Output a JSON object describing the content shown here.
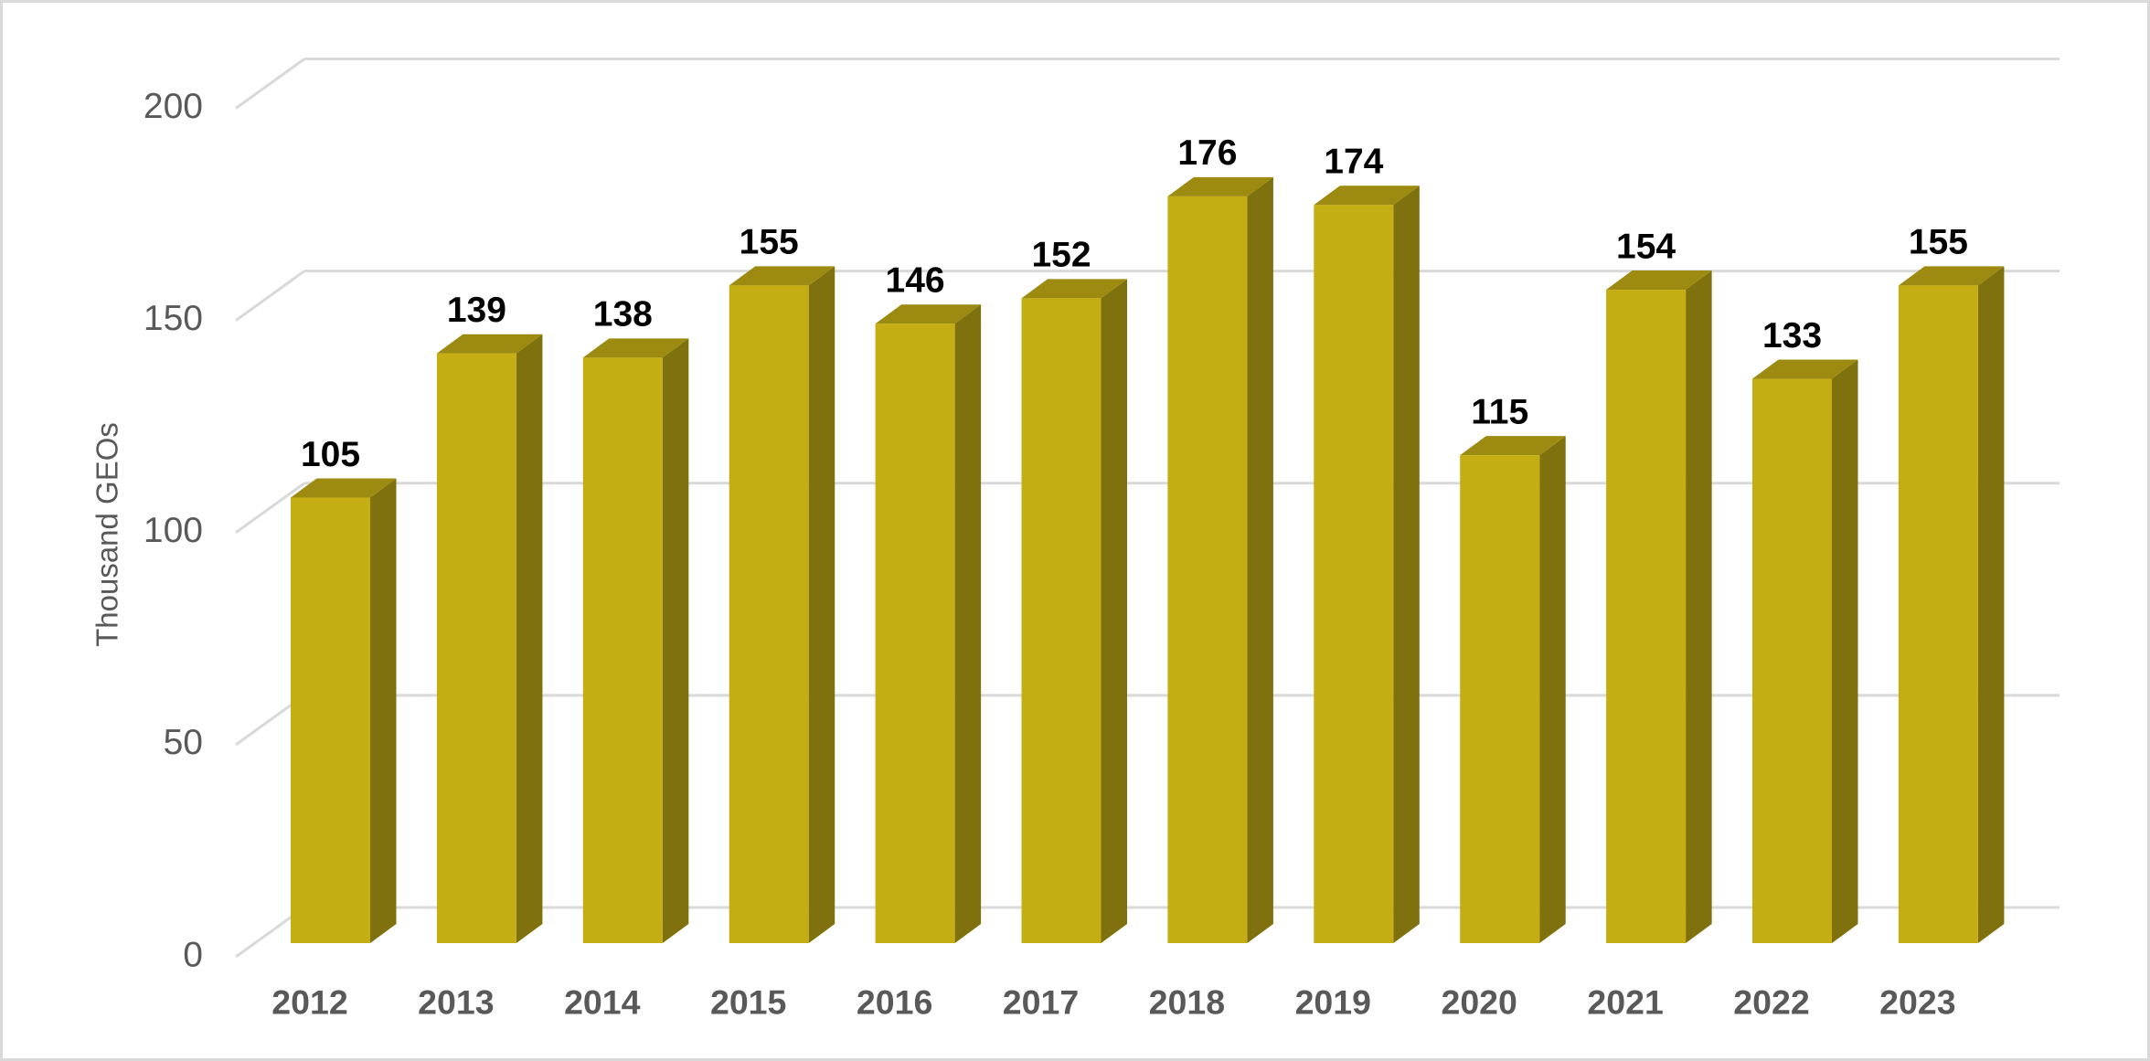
{
  "chart_data": {
    "type": "bar3d",
    "y_label": "Thousand GEOs",
    "categories": [
      "2012",
      "2013",
      "2014",
      "2015",
      "2016",
      "2017",
      "2018",
      "2019",
      "2020",
      "2021",
      "2022",
      "2023"
    ],
    "values": [
      105,
      139,
      138,
      155,
      146,
      152,
      176,
      174,
      115,
      154,
      133,
      155
    ],
    "color": "#c4ae14",
    "ylim": [
      0,
      200
    ],
    "yticks": [
      0,
      50,
      100,
      150,
      200
    ],
    "grid": true
  }
}
